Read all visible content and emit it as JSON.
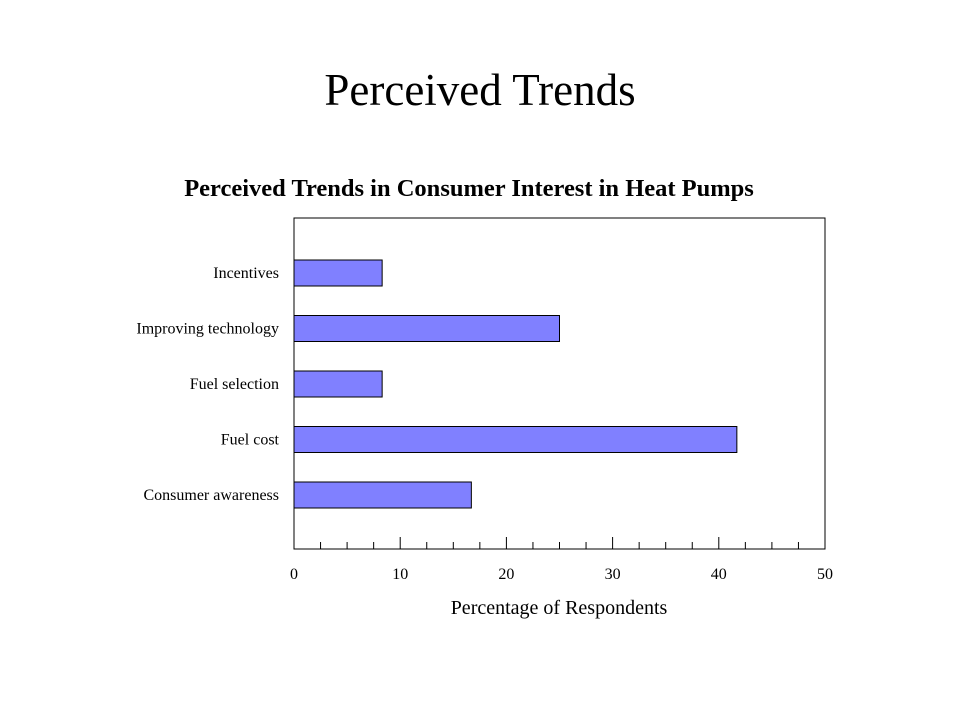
{
  "slide": {
    "title": "Perceived Trends"
  },
  "colors": {
    "bar_fill": "#8080ff",
    "bar_stroke": "#000000",
    "background": "#ffffff"
  },
  "chart_data": {
    "type": "bar",
    "orientation": "horizontal",
    "title": "Perceived Trends in Consumer Interest in Heat Pumps",
    "xlabel": "Percentage of Respondents",
    "ylabel": "",
    "categories": [
      "Incentives",
      "Improving technology",
      "Fuel selection",
      "Fuel cost",
      "Consumer awareness"
    ],
    "values": [
      8.3,
      25,
      8.3,
      41.7,
      16.7
    ],
    "xlim": [
      0,
      50
    ],
    "xticks": [
      "0",
      "10",
      "20",
      "30",
      "40",
      "50"
    ],
    "grid": false,
    "legend": "none"
  }
}
